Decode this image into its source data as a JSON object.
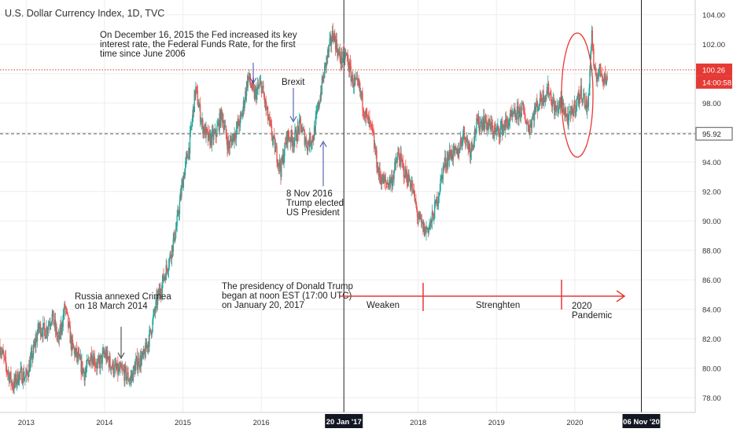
{
  "header": {
    "title": "U.S. Dollar Currency Index, 1D, TVC"
  },
  "chart_data": {
    "type": "candlestick",
    "title": "U.S. Dollar Currency Index, 1D, TVC",
    "xlabel": "",
    "ylabel": "",
    "ylim": [
      77,
      105
    ],
    "xlim": [
      "2012-09-01",
      "2021-07-15"
    ],
    "y_ticks": [
      78,
      80,
      82,
      84,
      86,
      88,
      90,
      92,
      94,
      96,
      98,
      100,
      102,
      104
    ],
    "y_tick_labels": [
      "78.00",
      "80.00",
      "82.00",
      "84.00",
      "86.00",
      "88.00",
      "90.00",
      "92.00",
      "94.00",
      "96.00",
      "98.00",
      "100.00",
      "102.00",
      "104.00"
    ],
    "x_ticks": [
      {
        "date": "2013-01-01",
        "label": "2013"
      },
      {
        "date": "2014-01-01",
        "label": "2014"
      },
      {
        "date": "2015-01-01",
        "label": "2015"
      },
      {
        "date": "2016-01-01",
        "label": "2016"
      },
      {
        "date": "2018-01-01",
        "label": "2018"
      },
      {
        "date": "2019-01-01",
        "label": "2019"
      },
      {
        "date": "2020-01-01",
        "label": "2020"
      }
    ],
    "price_path": [
      [
        "2012-09-01",
        81.5
      ],
      [
        "2012-10-01",
        80.0
      ],
      [
        "2012-11-01",
        78.8
      ],
      [
        "2012-12-01",
        79.6
      ],
      [
        "2013-01-01",
        79.4
      ],
      [
        "2013-02-01",
        81.0
      ],
      [
        "2013-03-01",
        82.8
      ],
      [
        "2013-04-01",
        82.5
      ],
      [
        "2013-05-01",
        83.6
      ],
      [
        "2013-06-01",
        81.8
      ],
      [
        "2013-07-01",
        84.2
      ],
      [
        "2013-08-01",
        81.5
      ],
      [
        "2013-09-01",
        80.6
      ],
      [
        "2013-10-01",
        79.6
      ],
      [
        "2013-11-01",
        81.0
      ],
      [
        "2013-12-01",
        80.1
      ],
      [
        "2014-01-01",
        81.0
      ],
      [
        "2014-02-01",
        80.2
      ],
      [
        "2014-03-01",
        79.8
      ],
      [
        "2014-04-01",
        79.7
      ],
      [
        "2014-05-01",
        79.2
      ],
      [
        "2014-06-01",
        80.4
      ],
      [
        "2014-07-01",
        80.7
      ],
      [
        "2014-08-01",
        82.3
      ],
      [
        "2014-09-01",
        84.5
      ],
      [
        "2014-10-01",
        86.0
      ],
      [
        "2014-11-01",
        87.5
      ],
      [
        "2014-12-01",
        89.5
      ],
      [
        "2015-01-01",
        92.8
      ],
      [
        "2015-02-01",
        95.2
      ],
      [
        "2015-03-01",
        99.0
      ],
      [
        "2015-04-01",
        96.5
      ],
      [
        "2015-05-01",
        95.5
      ],
      [
        "2015-06-01",
        95.8
      ],
      [
        "2015-07-01",
        97.3
      ],
      [
        "2015-08-01",
        95.0
      ],
      [
        "2015-09-01",
        96.0
      ],
      [
        "2015-10-01",
        97.0
      ],
      [
        "2015-11-01",
        99.8
      ],
      [
        "2015-12-01",
        98.5
      ],
      [
        "2016-01-01",
        99.3
      ],
      [
        "2016-02-01",
        97.0
      ],
      [
        "2016-03-01",
        95.2
      ],
      [
        "2016-04-01",
        93.5
      ],
      [
        "2016-05-01",
        95.8
      ],
      [
        "2016-06-01",
        95.5
      ],
      [
        "2016-07-01",
        96.5
      ],
      [
        "2016-08-01",
        95.2
      ],
      [
        "2016-09-01",
        95.8
      ],
      [
        "2016-10-01",
        98.5
      ],
      [
        "2016-11-01",
        101.0
      ],
      [
        "2016-12-01",
        102.8
      ],
      [
        "2017-01-01",
        101.0
      ],
      [
        "2017-02-01",
        101.2
      ],
      [
        "2017-03-01",
        99.5
      ],
      [
        "2017-04-01",
        99.0
      ],
      [
        "2017-05-01",
        97.2
      ],
      [
        "2017-06-01",
        96.0
      ],
      [
        "2017-07-01",
        93.2
      ],
      [
        "2017-08-01",
        92.5
      ],
      [
        "2017-09-01",
        92.8
      ],
      [
        "2017-10-01",
        94.5
      ],
      [
        "2017-11-01",
        93.2
      ],
      [
        "2017-12-01",
        92.5
      ],
      [
        "2018-01-01",
        90.2
      ],
      [
        "2018-02-01",
        89.3
      ],
      [
        "2018-03-01",
        89.8
      ],
      [
        "2018-04-01",
        91.5
      ],
      [
        "2018-05-01",
        93.8
      ],
      [
        "2018-06-01",
        94.6
      ],
      [
        "2018-07-01",
        94.5
      ],
      [
        "2018-08-01",
        96.0
      ],
      [
        "2018-09-01",
        94.8
      ],
      [
        "2018-10-01",
        96.5
      ],
      [
        "2018-11-01",
        96.8
      ],
      [
        "2018-12-01",
        96.4
      ],
      [
        "2019-01-01",
        96.0
      ],
      [
        "2019-02-01",
        96.4
      ],
      [
        "2019-03-01",
        96.8
      ],
      [
        "2019-04-01",
        97.2
      ],
      [
        "2019-05-01",
        97.6
      ],
      [
        "2019-06-01",
        96.3
      ],
      [
        "2019-07-01",
        97.6
      ],
      [
        "2019-08-01",
        98.4
      ],
      [
        "2019-09-01",
        98.9
      ],
      [
        "2019-10-01",
        97.5
      ],
      [
        "2019-11-01",
        98.0
      ],
      [
        "2019-12-01",
        96.8
      ],
      [
        "2020-01-01",
        97.8
      ],
      [
        "2020-02-01",
        98.8
      ],
      [
        "2020-03-01",
        97.5
      ],
      [
        "2020-03-20",
        102.8
      ],
      [
        "2020-04-01",
        99.8
      ],
      [
        "2020-05-01",
        100.2
      ],
      [
        "2020-06-01",
        99.4
      ]
    ],
    "horizontal_lines": [
      {
        "value": 100.26,
        "style": "dotted",
        "color": "#e53935",
        "label": "100.26"
      },
      {
        "value": 95.92,
        "style": "dashed",
        "color": "#555555",
        "label": "95.92"
      }
    ],
    "vertical_lines": [
      {
        "date": "2017-01-20",
        "label": "20 Jan '17"
      },
      {
        "date": "2020-11-06",
        "label": "06 Nov '20"
      }
    ],
    "countdown_label": "14:00:58",
    "annotations": [
      {
        "id": "fed",
        "lines": [
          "On December 16, 2015 the Fed increased its key",
          "interest rate, the Federal Funds Rate, for the first",
          "time since June 2006"
        ]
      },
      {
        "id": "brexit",
        "lines": [
          "Brexit"
        ]
      },
      {
        "id": "trump-elected",
        "lines": [
          "8 Nov 2016",
          "Trump elected",
          "US President"
        ]
      },
      {
        "id": "crimea",
        "lines": [
          "Russia annexed Crimea",
          "on 18 March 2014"
        ]
      },
      {
        "id": "presidency",
        "lines": [
          "The presidency of Donald Trump",
          "began at noon EST (17:00 UTC)",
          "on January 20, 2017"
        ]
      },
      {
        "id": "weaken",
        "lines": [
          "Weaken"
        ]
      },
      {
        "id": "strenghten",
        "lines": [
          "Strenghten"
        ]
      },
      {
        "id": "pandemic",
        "lines": [
          "2020",
          "Pandemic"
        ]
      }
    ]
  },
  "colors": {
    "up": "#26a69a",
    "down": "#ef5350",
    "accent_red": "#e53935",
    "arrow_blue": "#3949ab",
    "grid": "#eeeeee"
  }
}
